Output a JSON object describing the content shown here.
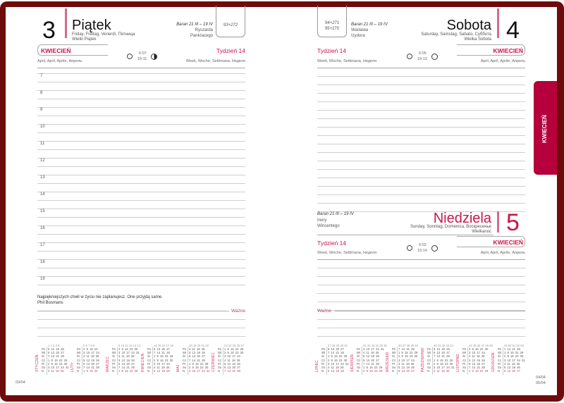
{
  "colors": {
    "frame": "#6e0b0b",
    "accent": "#c8174a",
    "tab": "#b5003c"
  },
  "left": {
    "day_number": "3",
    "day_name": "Piątek",
    "day_translations": "Friday, Freitag, Venerdì, Пятница",
    "holiday": "Wielki Piątek",
    "zodiac": "Baran 21 III – 19 IV",
    "names": [
      "Ryszarda",
      "Pankracego"
    ],
    "day_count": "93+272",
    "month": "KWIECIEŃ",
    "month_translations": "April, April, Aprile, Апрель",
    "sunrise": "6:07",
    "sunset": "19:11",
    "moon_icon": "moon-last-quarter-icon",
    "week": "Tydzień 14",
    "week_translations": "Week, Woche, Settimana, Неделя",
    "hours": [
      "7",
      "8",
      "9",
      "10",
      "11",
      "12",
      "13",
      "14",
      "15",
      "16",
      "17",
      "18",
      "19"
    ],
    "quote": "Najpiękniejszych chwil w życiu nie zaplanujesz. One przyjdą same.",
    "quote_author": "Phil Bosmans",
    "important": "Ważne",
    "page_number": "03/04"
  },
  "right": {
    "day_counts": [
      "94+271",
      "95+270"
    ],
    "zodiac": "Baran 21 III – 19 IV",
    "names": [
      "Wacława",
      "Izydora"
    ],
    "day_number": "4",
    "day_name": "Sobota",
    "day_translations": "Saturday, Samstag, Sabato, Суббота",
    "holiday": "Wielka Sobota",
    "week": "Tydzień 14",
    "week_translations": "Week, Woche, Settimana, Неделя",
    "sunrise": "6:05",
    "sunset": "19:13",
    "month": "KWIECIEŃ",
    "month_translations": "April, April, Aprile, Апрель",
    "sunday": {
      "zodiac": "Baran 21 III – 19 IV",
      "names": [
        "Ireny",
        "Wincentego"
      ],
      "day_number": "5",
      "day_name": "Niedziela",
      "day_translations": "Sunday, Sonntag, Domenica, Воскресенье",
      "holiday": "Wielkanoc",
      "week": "Tydzień 14",
      "week_translations": "Week, Woche, Settimana, Неделя",
      "sunrise": "6:02",
      "sunset": "19:14",
      "month": "KWIECIEŃ",
      "month_translations": "April, April, Aprile, Апрель"
    },
    "important": "Ważne",
    "tab_label": "KWIECIEŃ",
    "page_numbers": [
      "04/04",
      "05/04"
    ]
  },
  "weekdays": [
    "Pn",
    "Wt",
    "Śr",
    "Cz",
    "Pt",
    "So",
    "N"
  ],
  "calendars": [
    {
      "month": "STYCZEŃ",
      "weeks": "1 2 3 4 5",
      "rows": [
        "5 12 19 26",
        "6 13 20 27",
        "7 14 21 28",
        "1 8 15 22 29",
        "2 9 16 23 30",
        "3 10 17 24 31",
        "4 11 18 25"
      ]
    },
    {
      "month": "LUTY",
      "weeks": "5 6 7 8 9",
      "rows": [
        "2 9 16 23",
        "3 10 17 24",
        "4 11 18 25",
        "5 12 19 26",
        "6 13 20 27",
        "7 14 21 28",
        "1 8 15 22"
      ]
    },
    {
      "month": "MARZEC",
      "weeks": "9 10 11 12 13 14",
      "rows": [
        "2 9 16 23 30",
        "3 10 17 24 31",
        "4 11 18 25",
        "5 12 19 26",
        "6 13 20 27",
        "7 14 21 28",
        "1 8 15 22 29"
      ]
    },
    {
      "month": "KWIECIEŃ",
      "weeks": "14 15 16 17 18",
      "rows": [
        "6 13 20 27",
        "7 14 21 28",
        "1 8 15 22 29",
        "2 9 16 23 30",
        "3 10 17 24",
        "4 11 18 25",
        "5 12 19 26"
      ]
    },
    {
      "month": "MAJ",
      "weeks": "18 19 20 21 22",
      "rows": [
        "4 11 18 25",
        "5 12 19 26",
        "6 13 20 27",
        "7 14 21 28",
        "1 8 15 22 29",
        "2 9 16 23 30",
        "3 10 17 24 31"
      ]
    },
    {
      "month": "CZERWIEC",
      "weeks": "23 24 25 26 27",
      "rows": [
        "1 8 15 22 29",
        "2 9 16 23 30",
        "3 10 17 24",
        "4 11 18 25",
        "5 12 19 26",
        "6 13 20 27",
        "7 14 21 28"
      ]
    },
    {
      "month": "LIPIEC",
      "weeks": "27 28 29 30 31",
      "rows": [
        "6 13 20 27",
        "7 14 21 28",
        "1 8 15 22 29",
        "2 9 16 23 30",
        "3 10 17 24 31",
        "4 11 18 25",
        "5 12 19 26"
      ]
    },
    {
      "month": "SIERPIEŃ",
      "weeks": "31 32 33 34 35 36",
      "rows": [
        "3 10 17 24 31",
        "4 11 18 25",
        "5 12 19 26",
        "6 13 20 27",
        "7 14 21 28",
        "1 8 15 22 29",
        "2 9 16 23 30"
      ]
    },
    {
      "month": "WRZESIEŃ",
      "weeks": "36 37 38 39 40",
      "rows": [
        "7 14 21 28",
        "1 8 15 22 29",
        "2 9 16 23 30",
        "3 10 17 24",
        "4 11 18 25",
        "5 12 19 26",
        "6 13 20 27"
      ]
    },
    {
      "month": "PAŹDZIERNIK",
      "weeks": "40 41 42 43 44",
      "rows": [
        "5 12 19 26",
        "6 13 20 27",
        "7 14 21 28",
        "1 8 15 22 29",
        "2 9 16 23 30",
        "3 10 17 24 31",
        "4 11 18 25"
      ]
    },
    {
      "month": "LISTOPAD",
      "weeks": "44 45 46 47 48 49",
      "rows": [
        "2 9 16 23 30",
        "3 10 17 24",
        "4 11 18 25",
        "5 12 19 26",
        "6 13 20 27",
        "7 14 21 28",
        "1 8 15 22 29"
      ]
    },
    {
      "month": "GRUDZIEŃ",
      "weeks": "49 50 51 52 53",
      "rows": [
        "7 14 21 28",
        "1 8 15 22 29",
        "2 9 16 23 30",
        "3 10 17 24 31",
        "4 11 18 25",
        "5 12 19 26",
        "6 13 20 27"
      ]
    }
  ]
}
